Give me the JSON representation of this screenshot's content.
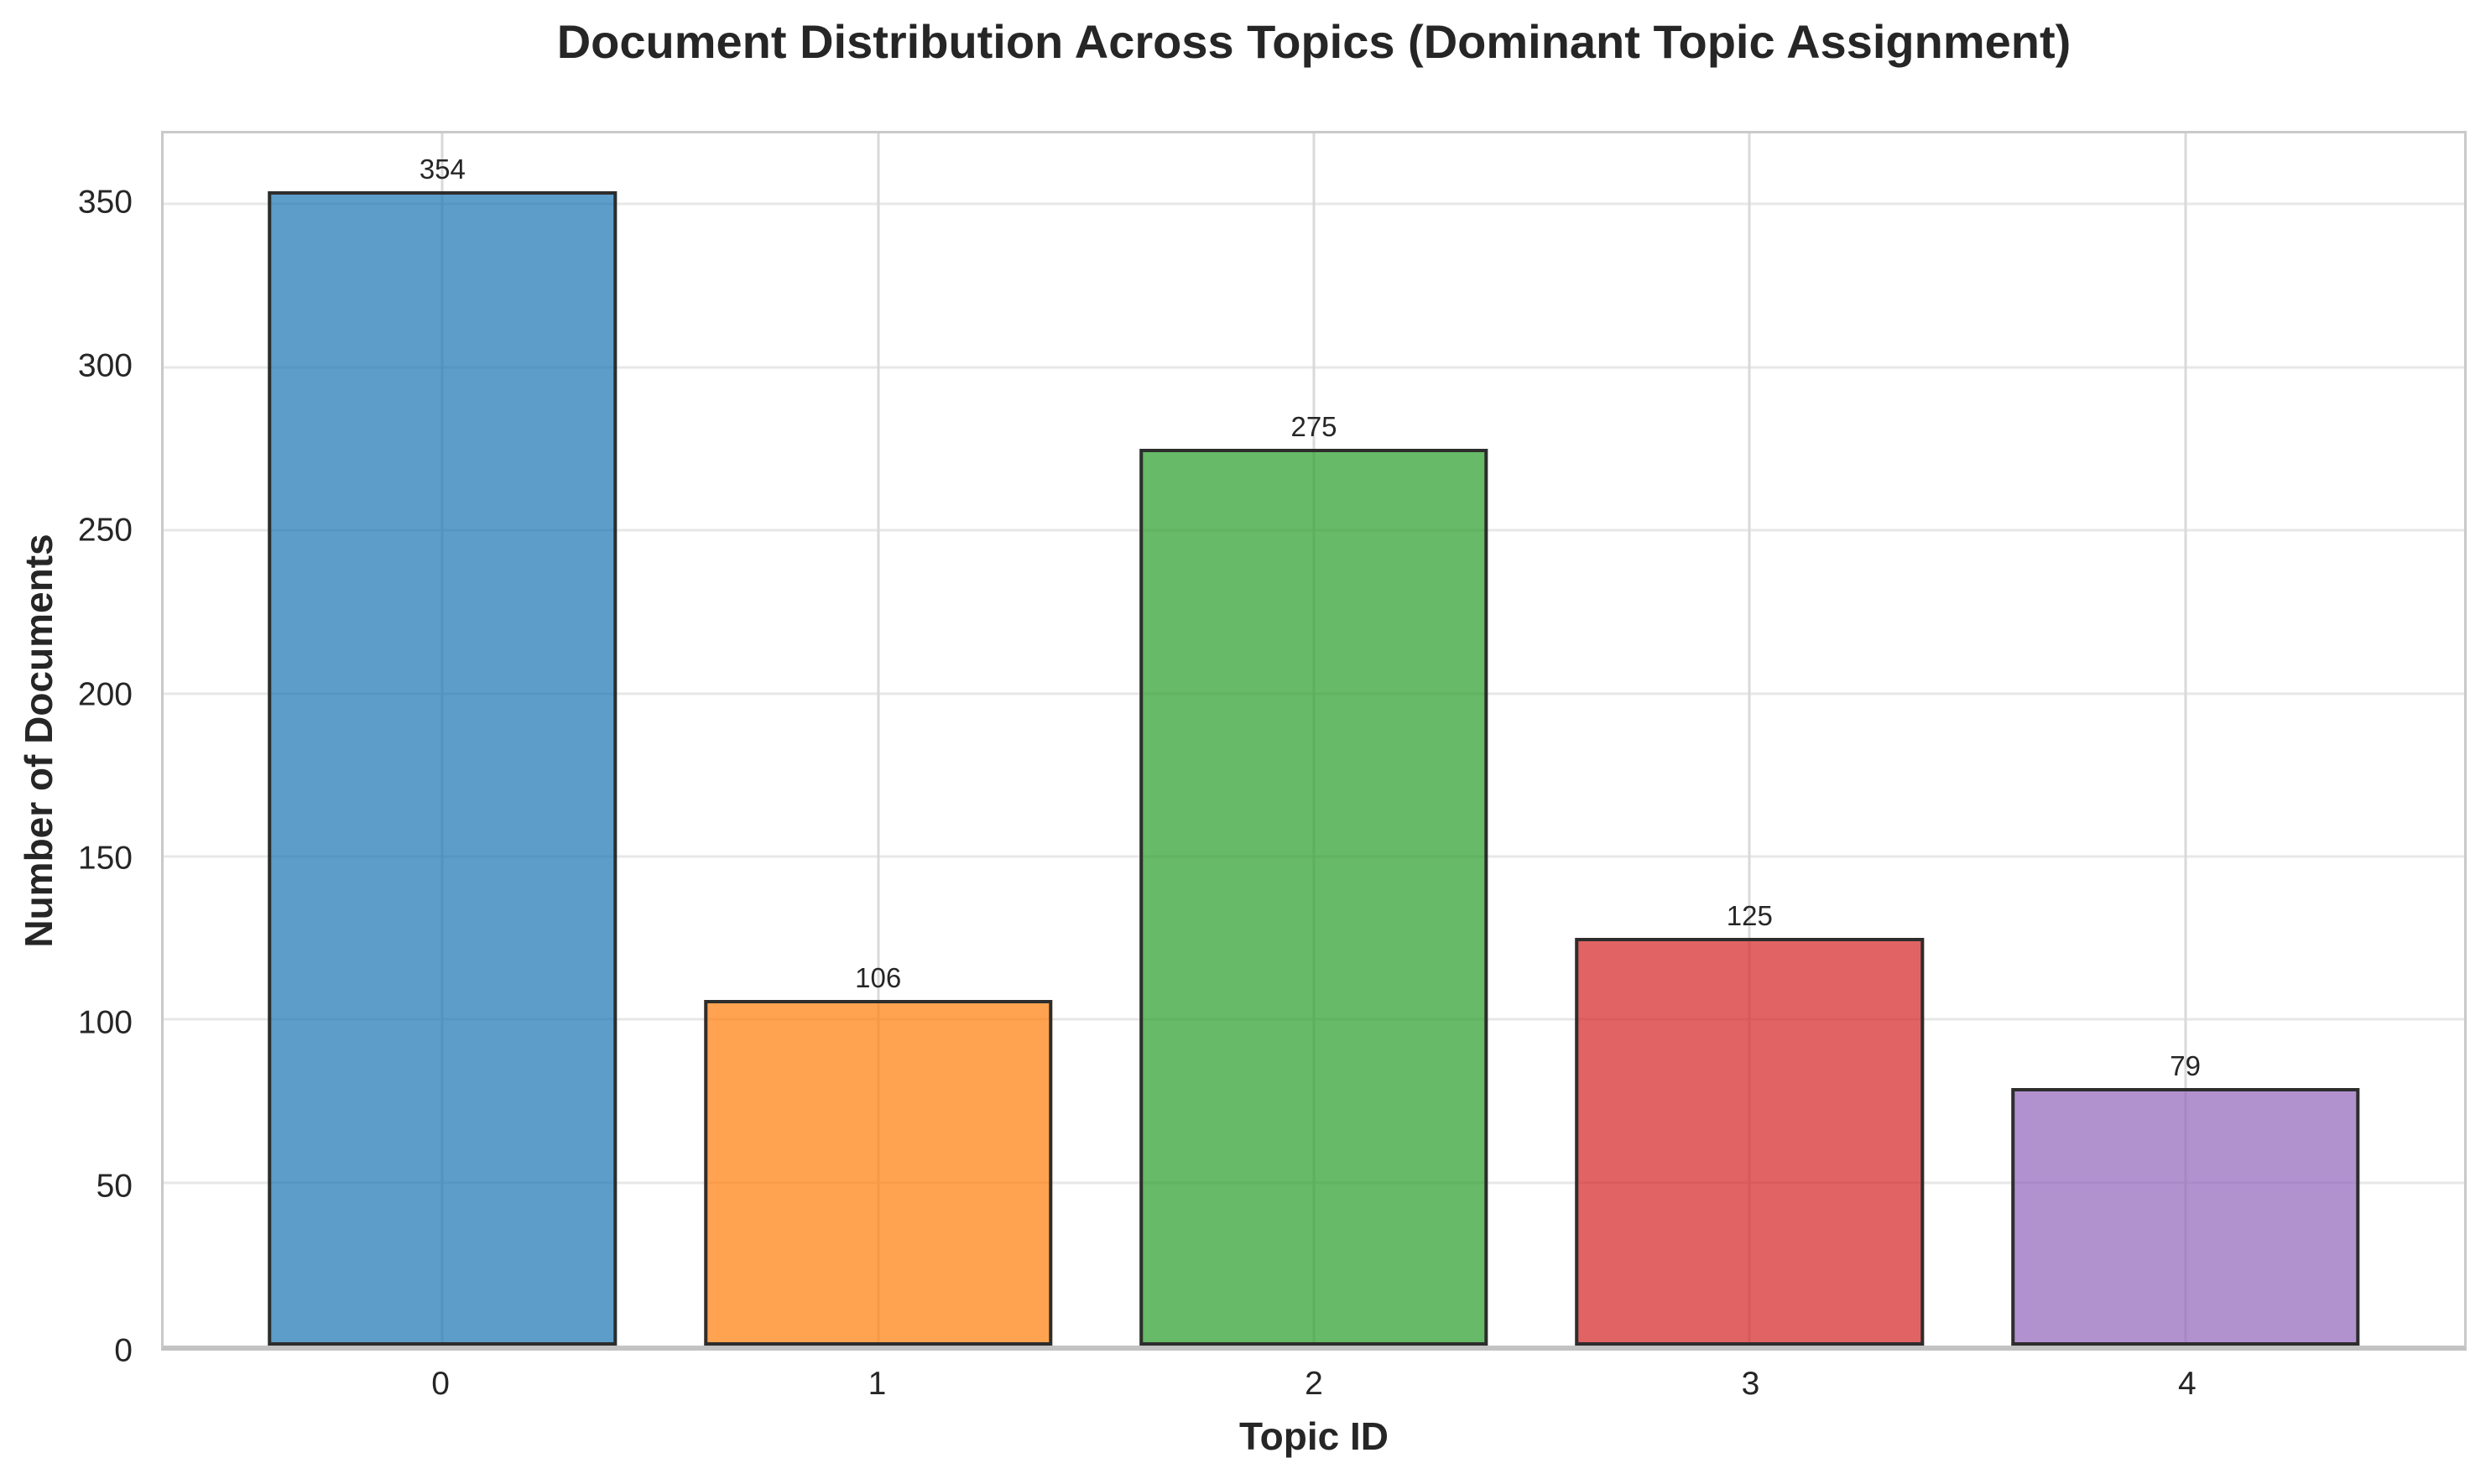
{
  "chart_data": {
    "type": "bar",
    "title": "Document Distribution Across Topics (Dominant Topic Assignment)",
    "xlabel": "Topic ID",
    "ylabel": "Number of Documents",
    "categories": [
      "0",
      "1",
      "2",
      "3",
      "4"
    ],
    "values": [
      354,
      106,
      275,
      125,
      79
    ],
    "value_labels": [
      "354",
      "106",
      "275",
      "125",
      "79"
    ],
    "yticks": [
      0,
      50,
      100,
      150,
      200,
      250,
      300,
      350
    ],
    "ylim": [
      0,
      371.7
    ],
    "xlim": [
      -0.64,
      4.64
    ],
    "bar_width": 0.8,
    "bar_colors": [
      "#1f77b4",
      "#ff7f0e",
      "#2ca02c",
      "#d62728",
      "#9467bd"
    ],
    "bar_alpha": 0.72,
    "bar_edge_color": "#2d2d2d",
    "grid": true,
    "grid_horizontal_color": "#e7e7e7",
    "grid_vertical_color": "#d9d9d9",
    "spine_color": "#c9c9c9",
    "bottom_spine_color": "#c3c3c3",
    "text_color": "#262626",
    "background_color": "#ffffff",
    "legend_position": "none"
  }
}
